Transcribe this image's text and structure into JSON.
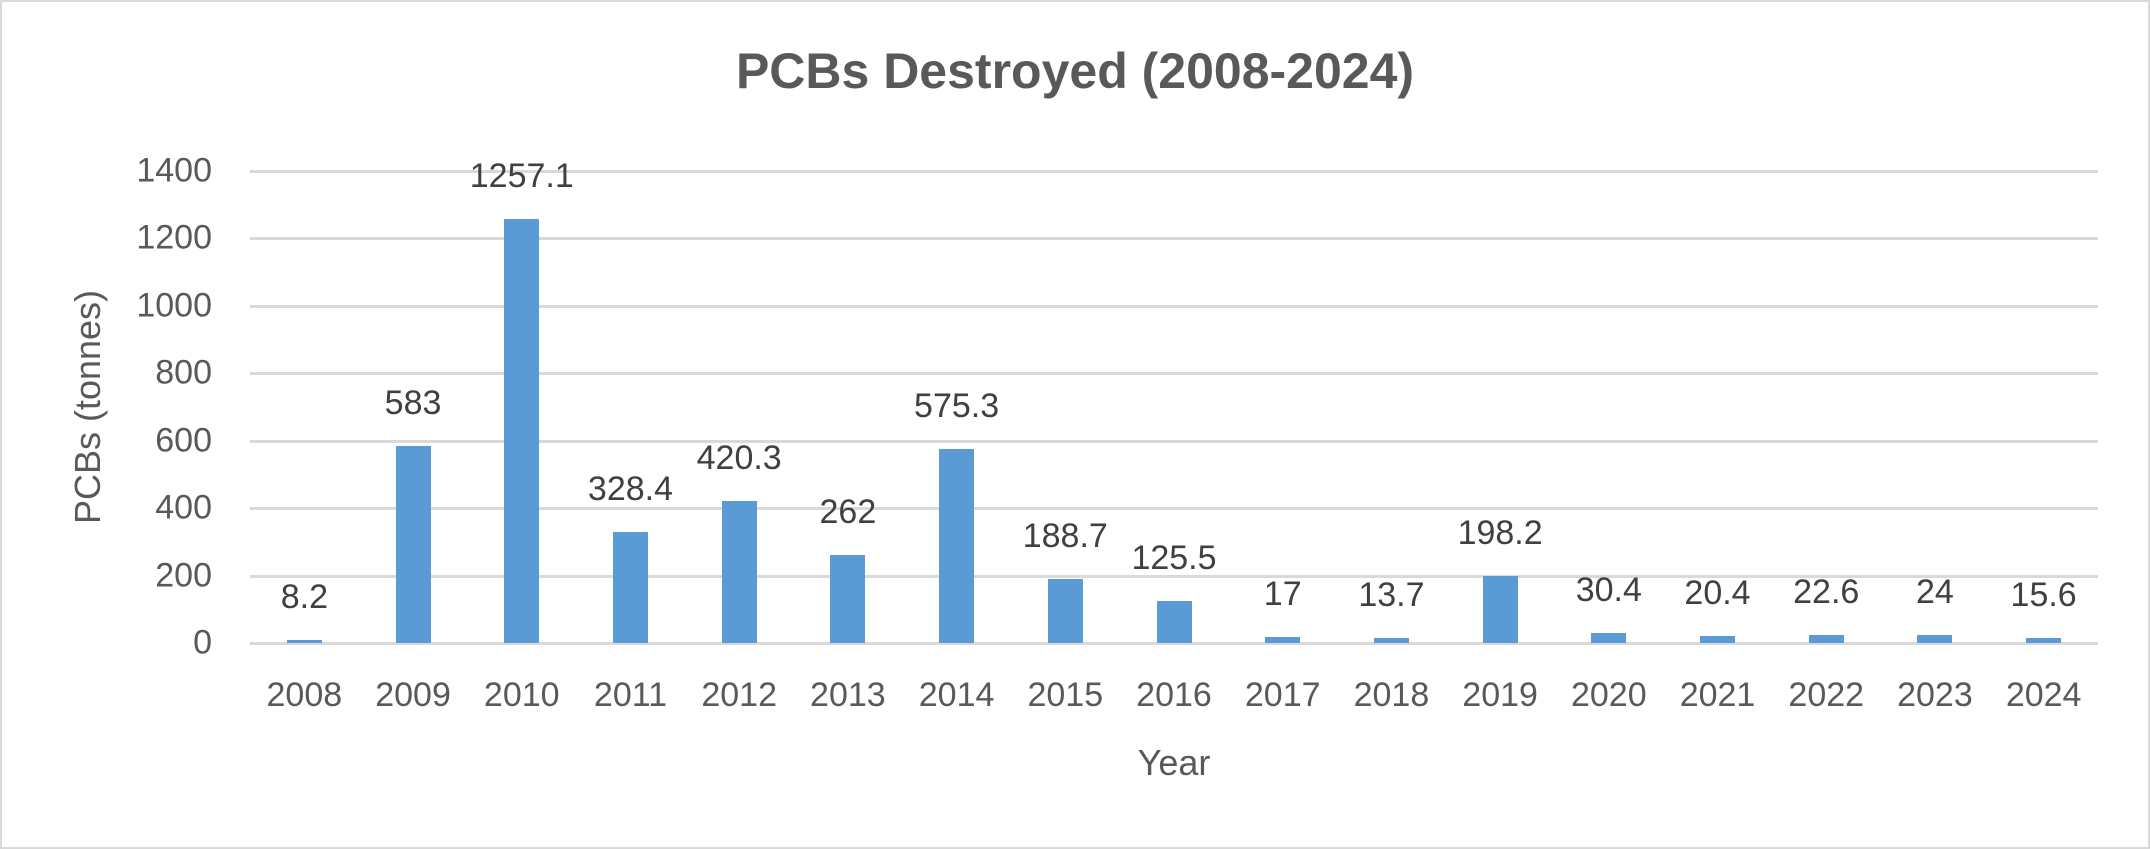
{
  "chart_data": {
    "type": "bar",
    "title": "PCBs Destroyed (2008-2024)",
    "xlabel": "Year",
    "ylabel": "PCBs (tonnes)",
    "categories": [
      "2008",
      "2009",
      "2010",
      "2011",
      "2012",
      "2013",
      "2014",
      "2015",
      "2016",
      "2017",
      "2018",
      "2019",
      "2020",
      "2021",
      "2022",
      "2023",
      "2024"
    ],
    "values": [
      8.2,
      583,
      1257.1,
      328.4,
      420.3,
      262,
      575.3,
      188.7,
      125.5,
      17,
      13.7,
      198.2,
      30.4,
      20.4,
      22.6,
      24,
      15.6
    ],
    "data_labels": [
      "8.2",
      "583",
      "1257.1",
      "328.4",
      "420.3",
      "262",
      "575.3",
      "188.7",
      "125.5",
      "17",
      "13.7",
      "198.2",
      "30.4",
      "20.4",
      "22.6",
      "24",
      "15.6"
    ],
    "ylim": [
      0,
      1400
    ],
    "yticks": [
      "0",
      "200",
      "400",
      "600",
      "800",
      "1000",
      "1200",
      "1400"
    ],
    "grid": true,
    "legend": null,
    "bar_color": "#5b9bd5"
  }
}
